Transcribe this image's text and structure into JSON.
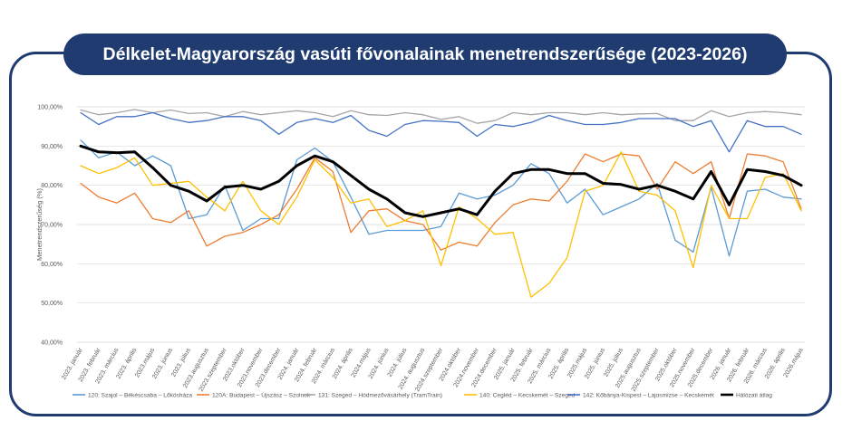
{
  "title": "Délkelet-Magyarország vasúti fővonalainak menetrendszerűsége (2023-2026)",
  "chart_data": {
    "type": "line",
    "ylabel": "Menetrendszerűség (%)",
    "xlabel": "",
    "ylim": [
      40,
      100
    ],
    "yticks": [
      40,
      50,
      60,
      70,
      80,
      90,
      100
    ],
    "ytick_labels": [
      "40,00%",
      "50,00%",
      "60,00%",
      "70,00%",
      "80,00%",
      "90,00%",
      "100,00%"
    ],
    "grid": true,
    "legend_position": "bottom",
    "categories": [
      "2023. január",
      "2023. február",
      "2023. március",
      "2023. április",
      "2023.május",
      "2023. június",
      "2023. július",
      "2023.augusztus",
      "2023.szeptember",
      "2023.október",
      "2023.november",
      "2023.december",
      "2024. január",
      "2024. február",
      "2024. március",
      "2024. április",
      "2024.május",
      "2024. június",
      "2024. július",
      "2024. augusztus",
      "2024.szeptember",
      "2024.október",
      "2024.november",
      "2024.december",
      "2025. január",
      "2025. február",
      "2025. március",
      "2025. április",
      "2025.május",
      "2025. június",
      "2025. július",
      "2025.augusztus",
      "2025.szeptember",
      "2025.október",
      "2025.november",
      "2025.december",
      "2026. január",
      "2026. február",
      "2026. március",
      "2026. április",
      "2026.május"
    ],
    "series": [
      {
        "name": "120: Szajol – Békéscsaba – Lőkösháza",
        "color": "#5b9bd5",
        "width": 1.3,
        "values": [
          91.5,
          87.0,
          88.5,
          85.0,
          87.5,
          85.0,
          71.5,
          72.5,
          80.0,
          68.5,
          71.5,
          71.5,
          86.5,
          89.5,
          86.0,
          77.0,
          67.5,
          68.5,
          68.5,
          68.5,
          69.5,
          78.0,
          76.5,
          77.5,
          80.0,
          85.5,
          83.0,
          75.5,
          79.0,
          72.5,
          74.5,
          76.5,
          80.5,
          66.0,
          63.0,
          79.5,
          62.0,
          78.5,
          79.0,
          77.0,
          76.5
        ]
      },
      {
        "name": "120A: Budapest – Újszász – Szolnok",
        "color": "#ed7d31",
        "width": 1.3,
        "values": [
          80.5,
          77.0,
          75.5,
          78.0,
          71.5,
          70.5,
          73.5,
          64.5,
          67.0,
          68.0,
          70.0,
          72.5,
          79.0,
          87.0,
          83.5,
          68.0,
          73.5,
          74.0,
          71.0,
          70.0,
          63.5,
          65.5,
          64.5,
          70.5,
          75.0,
          76.5,
          76.0,
          81.0,
          88.0,
          86.0,
          88.0,
          87.5,
          79.0,
          86.0,
          83.0,
          86.0,
          71.5,
          88.0,
          87.5,
          86.0,
          74.0
        ]
      },
      {
        "name": "131: Szeged – Hódmezővásárhely (TramTrain)",
        "color": "#a5a5a5",
        "width": 1.3,
        "values": [
          99.2,
          98.0,
          98.5,
          99.3,
          98.5,
          99.2,
          98.3,
          98.5,
          97.5,
          98.8,
          98.0,
          98.5,
          99.0,
          98.5,
          97.5,
          99.0,
          98.0,
          97.8,
          98.5,
          98.0,
          96.8,
          97.5,
          95.8,
          96.5,
          98.5,
          98.0,
          98.5,
          98.5,
          98.0,
          98.5,
          98.0,
          98.2,
          98.3,
          96.5,
          96.5,
          99.0,
          97.5,
          98.5,
          98.8,
          98.5,
          98.0
        ]
      },
      {
        "name": "140: Cegléd – Kecskemét – Szeged",
        "color": "#ffc000",
        "width": 1.3,
        "values": [
          85.0,
          83.0,
          84.5,
          87.0,
          80.0,
          80.5,
          81.0,
          77.0,
          73.5,
          81.0,
          73.5,
          70.0,
          77.0,
          86.5,
          82.0,
          75.5,
          76.5,
          69.5,
          71.0,
          73.5,
          59.5,
          74.5,
          71.5,
          67.5,
          68.0,
          51.5,
          55.0,
          61.5,
          78.5,
          80.0,
          88.5,
          78.5,
          77.5,
          73.5,
          59.0,
          80.0,
          71.5,
          71.5,
          82.0,
          83.0,
          73.5
        ]
      },
      {
        "name": "142: Kőbánya-Kispest – Lajosmizse – Kecskemét",
        "color": "#4472c4",
        "width": 1.3,
        "values": [
          98.5,
          95.5,
          97.5,
          97.5,
          98.5,
          97.0,
          96.0,
          96.5,
          97.5,
          97.5,
          96.5,
          93.0,
          96.0,
          97.0,
          96.0,
          97.8,
          94.0,
          92.5,
          95.5,
          96.5,
          96.3,
          96.0,
          92.5,
          95.5,
          95.0,
          96.0,
          97.8,
          96.5,
          95.5,
          95.5,
          96.0,
          97.0,
          97.0,
          97.0,
          95.0,
          96.5,
          88.5,
          96.5,
          95.0,
          95.0,
          93.0
        ]
      },
      {
        "name": "Hálózati átlag",
        "color": "#000000",
        "width": 3,
        "values": [
          90.0,
          88.5,
          88.3,
          88.5,
          84.5,
          80.0,
          78.5,
          76.0,
          79.5,
          80.0,
          79.0,
          81.0,
          85.0,
          87.5,
          86.0,
          82.5,
          79.0,
          76.5,
          73.0,
          72.0,
          73.0,
          74.0,
          72.5,
          78.5,
          83.0,
          84.0,
          84.0,
          83.0,
          83.0,
          80.5,
          80.2,
          79.0,
          80.0,
          78.5,
          76.5,
          83.5,
          75.0,
          84.0,
          83.5,
          82.5,
          80.0
        ]
      }
    ]
  }
}
